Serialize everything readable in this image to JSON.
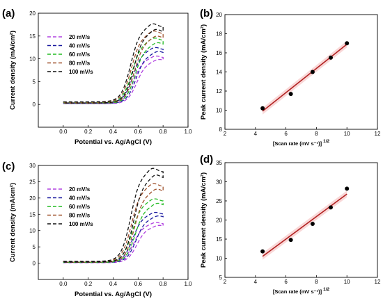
{
  "chart_data": [
    {
      "panel": "(a)",
      "type": "line",
      "xlabel": "Potential vs. Ag/AgCl (V)",
      "ylabel": "Current density (mA/cm²)",
      "xlim": [
        -0.2,
        1.0
      ],
      "ylim": [
        -5,
        20
      ],
      "xticks": [
        "0.0",
        "0.2",
        "0.4",
        "0.6",
        "0.8",
        "1.0"
      ],
      "yticks": [
        "0",
        "5",
        "10",
        "15",
        "20"
      ],
      "legend_position": "left",
      "series": [
        {
          "name": "20 mV/s",
          "color": "#b040e0",
          "plateau": 10.2
        },
        {
          "name": "40 mV/s",
          "color": "#1a1aa0",
          "plateau": 12.0
        },
        {
          "name": "60 mV/s",
          "color": "#22bb22",
          "plateau": 14.0
        },
        {
          "name": "80 mV/s",
          "color": "#a0522d",
          "plateau": 15.5
        },
        {
          "name": "100 mV/s",
          "color": "#111111",
          "plateau": 17.0
        }
      ]
    },
    {
      "panel": "(b)",
      "type": "scatter",
      "xlabel": "[Scan rate (mV s⁻¹)]",
      "xlabel_sup": "1/2",
      "ylabel": "Peak current density (mA/cm²)",
      "xlim": [
        2,
        12
      ],
      "ylim": [
        8,
        20
      ],
      "xticks": [
        "2",
        "4",
        "6",
        "8",
        "10",
        "12"
      ],
      "yticks": [
        "8",
        "10",
        "12",
        "14",
        "16",
        "18",
        "20"
      ],
      "points": [
        {
          "x": 4.47,
          "y": 10.2
        },
        {
          "x": 6.32,
          "y": 11.7
        },
        {
          "x": 7.75,
          "y": 14.0
        },
        {
          "x": 8.94,
          "y": 15.5
        },
        {
          "x": 10.0,
          "y": 17.0
        }
      ],
      "fit": {
        "x": [
          4.47,
          10.0
        ],
        "y": [
          9.9,
          16.9
        ],
        "color": "#b22222"
      }
    },
    {
      "panel": "(c)",
      "type": "line",
      "xlabel": "Potential vs. Ag/AgCl (V)",
      "ylabel": "Current density (mA/cm²)",
      "xlim": [
        -0.2,
        1.0
      ],
      "ylim": [
        -5,
        30
      ],
      "xticks": [
        "0.0",
        "0.2",
        "0.4",
        "0.6",
        "0.8",
        "1.0"
      ],
      "yticks": [
        "0",
        "5",
        "10",
        "15",
        "20",
        "25",
        "30"
      ],
      "legend_position": "left",
      "series": [
        {
          "name": "20 mV/s",
          "color": "#b040e0",
          "plateau": 12.0
        },
        {
          "name": "40 mV/s",
          "color": "#1a1aa0",
          "plateau": 15.0
        },
        {
          "name": "60 mV/s",
          "color": "#22bb22",
          "plateau": 19.0
        },
        {
          "name": "80 mV/s",
          "color": "#a0522d",
          "plateau": 23.5
        },
        {
          "name": "100 mV/s",
          "color": "#111111",
          "plateau": 28.0
        }
      ]
    },
    {
      "panel": "(d)",
      "type": "scatter",
      "xlabel": "[Scan rate (mV s⁻¹)]",
      "xlabel_sup": "1/2",
      "ylabel": "Peak current density (mA/cm²)",
      "xlim": [
        2,
        12
      ],
      "ylim": [
        5,
        35
      ],
      "xticks": [
        "2",
        "4",
        "6",
        "8",
        "10",
        "12"
      ],
      "yticks": [
        "5",
        "10",
        "15",
        "20",
        "25",
        "30",
        "35"
      ],
      "points": [
        {
          "x": 4.47,
          "y": 11.8
        },
        {
          "x": 6.32,
          "y": 14.8
        },
        {
          "x": 7.75,
          "y": 19.0
        },
        {
          "x": 8.94,
          "y": 23.3
        },
        {
          "x": 10.0,
          "y": 28.2
        }
      ],
      "fit": {
        "x": [
          4.47,
          10.0
        ],
        "y": [
          10.5,
          26.8
        ],
        "color": "#b22222"
      }
    }
  ]
}
